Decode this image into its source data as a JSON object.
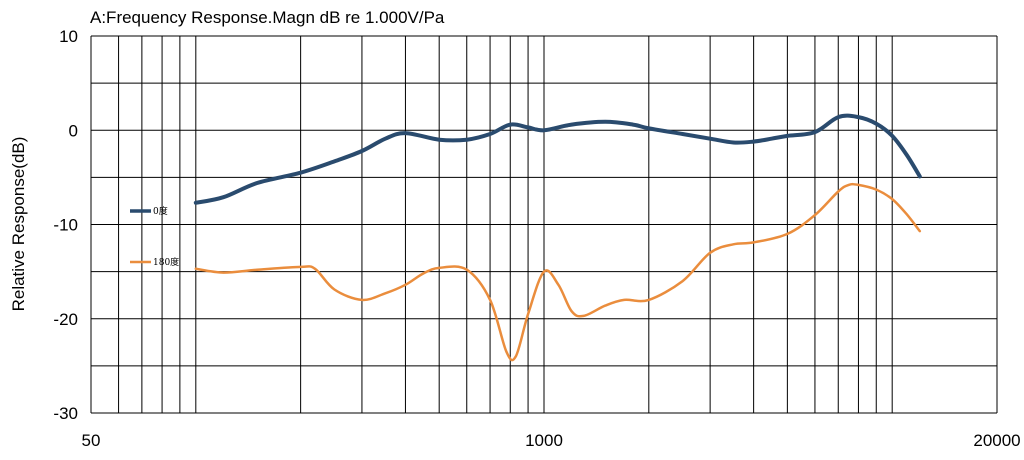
{
  "chart_data": {
    "type": "line",
    "title": "A:Frequency Response.Magn dB re 1.000V/Pa",
    "xlabel": "",
    "ylabel": "Relative Response(dB)",
    "xscale": "log",
    "xlim": [
      50,
      20000
    ],
    "ylim": [
      -30,
      10
    ],
    "x_tick_labels": [
      "50",
      "1000",
      "20000"
    ],
    "y_ticks": [
      10,
      0,
      -10,
      -20,
      -30
    ],
    "grid": true,
    "legend_position": "left",
    "colors": {
      "0度": "#2a4b6e",
      "180度": "#ea8d3d"
    },
    "series": [
      {
        "name": "0度",
        "color": "#2a4b6e",
        "points": [
          [
            100,
            -7.7
          ],
          [
            120,
            -7.1
          ],
          [
            150,
            -5.6
          ],
          [
            200,
            -4.5
          ],
          [
            250,
            -3.3
          ],
          [
            300,
            -2.2
          ],
          [
            350,
            -0.9
          ],
          [
            400,
            -0.3
          ],
          [
            500,
            -1.0
          ],
          [
            600,
            -1.0
          ],
          [
            700,
            -0.4
          ],
          [
            800,
            0.6
          ],
          [
            900,
            0.3
          ],
          [
            1000,
            0.0
          ],
          [
            1200,
            0.6
          ],
          [
            1500,
            0.9
          ],
          [
            1800,
            0.6
          ],
          [
            2000,
            0.2
          ],
          [
            2500,
            -0.4
          ],
          [
            3000,
            -0.9
          ],
          [
            3500,
            -1.3
          ],
          [
            4000,
            -1.2
          ],
          [
            4500,
            -0.9
          ],
          [
            5000,
            -0.6
          ],
          [
            6000,
            -0.2
          ],
          [
            7000,
            1.4
          ],
          [
            8000,
            1.4
          ],
          [
            9000,
            0.7
          ],
          [
            10000,
            -0.6
          ],
          [
            11000,
            -2.6
          ],
          [
            12000,
            -4.9
          ]
        ]
      },
      {
        "name": "180度",
        "color": "#ea8d3d",
        "points": [
          [
            100,
            -14.7
          ],
          [
            120,
            -15.1
          ],
          [
            150,
            -14.8
          ],
          [
            200,
            -14.5
          ],
          [
            220,
            -14.7
          ],
          [
            250,
            -16.9
          ],
          [
            300,
            -18.0
          ],
          [
            350,
            -17.3
          ],
          [
            400,
            -16.4
          ],
          [
            450,
            -15.2
          ],
          [
            500,
            -14.6
          ],
          [
            600,
            -14.8
          ],
          [
            700,
            -18.0
          ],
          [
            780,
            -23.5
          ],
          [
            830,
            -24.0
          ],
          [
            900,
            -19.5
          ],
          [
            1000,
            -15.0
          ],
          [
            1100,
            -16.4
          ],
          [
            1200,
            -19.2
          ],
          [
            1300,
            -19.7
          ],
          [
            1500,
            -18.6
          ],
          [
            1700,
            -18.0
          ],
          [
            2000,
            -18.0
          ],
          [
            2500,
            -16.0
          ],
          [
            3000,
            -13.0
          ],
          [
            3500,
            -12.1
          ],
          [
            4000,
            -11.9
          ],
          [
            5000,
            -11.0
          ],
          [
            6000,
            -9.0
          ],
          [
            7000,
            -6.5
          ],
          [
            7500,
            -5.8
          ],
          [
            8000,
            -5.8
          ],
          [
            9000,
            -6.3
          ],
          [
            10000,
            -7.3
          ],
          [
            11000,
            -8.9
          ],
          [
            12000,
            -10.7
          ]
        ]
      }
    ]
  }
}
